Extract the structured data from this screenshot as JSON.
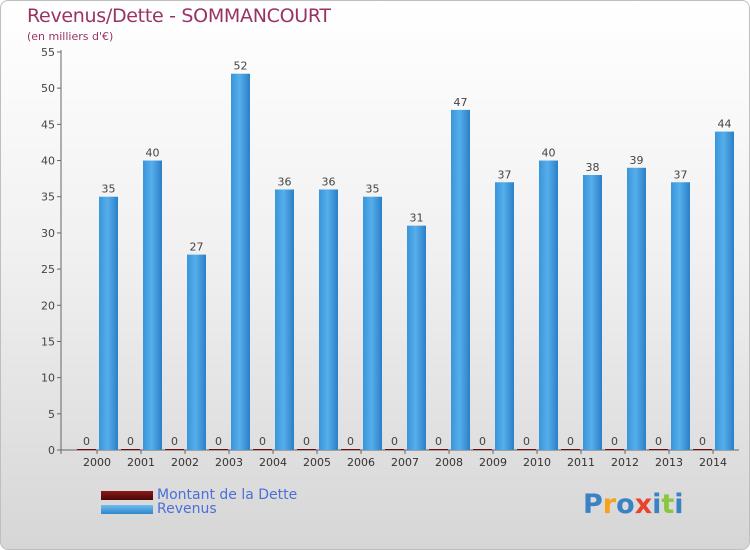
{
  "chart_data": {
    "type": "bar",
    "title": "Revenus/Dette - SOMMANCOURT",
    "subtitle": "(en milliers d'€)",
    "categories": [
      "2000",
      "2001",
      "2002",
      "2003",
      "2004",
      "2005",
      "2006",
      "2007",
      "2008",
      "2009",
      "2010",
      "2011",
      "2012",
      "2013",
      "2014"
    ],
    "series": [
      {
        "name": "Montant de la Dette",
        "color": "#6b0d0d",
        "values": [
          0,
          0,
          0,
          0,
          0,
          0,
          0,
          0,
          0,
          0,
          0,
          0,
          0,
          0,
          0
        ]
      },
      {
        "name": "Revenus",
        "color": "#4aa3e3",
        "values": [
          35,
          40,
          27,
          52,
          36,
          36,
          35,
          31,
          47,
          37,
          40,
          38,
          39,
          37,
          44
        ]
      }
    ],
    "ylim": [
      0,
      55
    ],
    "yticks": [
      0,
      5,
      10,
      15,
      20,
      25,
      30,
      35,
      40,
      45,
      50,
      55
    ],
    "grid": false,
    "legend": "bottom-left"
  },
  "logo": {
    "text": "Proxiti",
    "letters": [
      "P",
      "r",
      "o",
      "x",
      "i",
      "t",
      "i"
    ],
    "colors": [
      "#3b82c4",
      "#f7a21b",
      "#3b82c4",
      "#e8432e",
      "#3b82c4",
      "#8cc63f",
      "#3b82c4"
    ]
  }
}
